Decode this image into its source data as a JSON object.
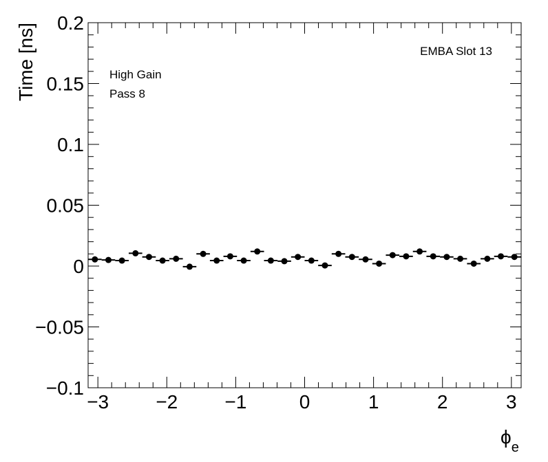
{
  "chart_data": {
    "type": "scatter",
    "title": "",
    "ylabel": "Time [ns]",
    "xlabel_main": "ϕ",
    "xlabel_sub": "e",
    "xlim": [
      -3.14159,
      3.14159
    ],
    "ylim": [
      -0.1,
      0.2
    ],
    "xticks": [
      -3,
      -2,
      -1,
      0,
      1,
      2,
      3
    ],
    "xtick_labels": [
      "−3",
      "−2",
      "−1",
      "0",
      "1",
      "2",
      "3"
    ],
    "yticks": [
      -0.1,
      -0.05,
      0,
      0.05,
      0.1,
      0.15,
      0.2
    ],
    "ytick_labels": [
      "−0.1",
      "−0.05",
      "0",
      "0.05",
      "0.1",
      "0.15",
      "0.2"
    ],
    "annotations": {
      "module": "EMBA Slot 13",
      "gain": "High Gain",
      "pass": "Pass 8"
    },
    "grid": false,
    "legend": "none",
    "marker_color": "#000000",
    "x": [
      -3.0434,
      -2.8471,
      -2.6507,
      -2.4544,
      -2.258,
      -2.0617,
      -1.8653,
      -1.669,
      -1.4726,
      -1.2763,
      -1.0799,
      -0.8836,
      -0.6872,
      -0.4909,
      -0.2945,
      -0.0982,
      0.0982,
      0.2945,
      0.4909,
      0.6872,
      0.8836,
      1.0799,
      1.2763,
      1.4726,
      1.669,
      1.8653,
      2.0617,
      2.258,
      2.4544,
      2.6507,
      2.8471,
      3.0434
    ],
    "y": [
      0.0055,
      0.005,
      0.0045,
      0.0105,
      0.0075,
      0.0045,
      0.006,
      -0.0005,
      0.01,
      0.0045,
      0.008,
      0.0045,
      0.012,
      0.0045,
      0.004,
      0.0075,
      0.0045,
      0.0005,
      0.01,
      0.0075,
      0.0055,
      0.002,
      0.009,
      0.008,
      0.012,
      0.008,
      0.0075,
      0.006,
      0.002,
      0.006,
      0.008,
      0.0075
    ]
  }
}
